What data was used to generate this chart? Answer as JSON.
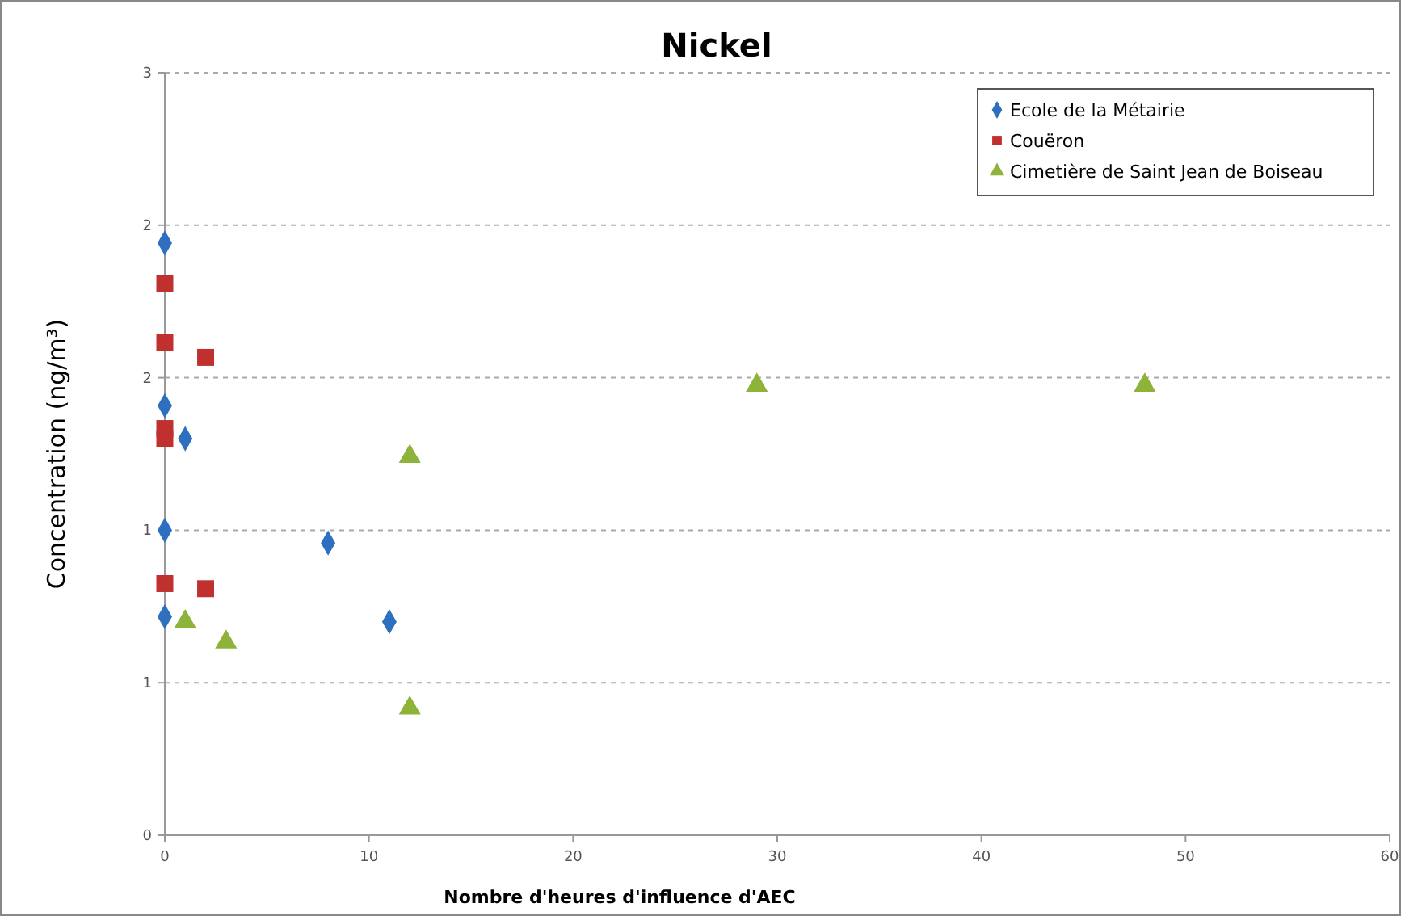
{
  "chart_data": {
    "type": "scatter",
    "title": "Nickel",
    "xlabel": "Nombre d'heures d'influence d'AEC",
    "ylabel": "Concentration  (ng/m³)",
    "xlim": [
      0,
      60
    ],
    "xticks": [
      0,
      10,
      20,
      30,
      40,
      50,
      60
    ],
    "ylim": [
      0,
      3
    ],
    "yticks": [
      0,
      {
        "value": 0.6,
        "label": "1"
      },
      {
        "value": 1.2,
        "label": "1"
      },
      {
        "value": 1.8,
        "label": "2"
      },
      {
        "value": 2.4,
        "label": "2"
      },
      3
    ],
    "grid": "y",
    "legend": "top right",
    "series": [
      {
        "name": "Ecole de la Métairie",
        "color": "#2e6fc0",
        "marker": "diamond",
        "x": [
          0,
          0,
          1,
          0,
          8,
          0,
          11
        ],
        "values": [
          2.33,
          1.69,
          1.56,
          1.2,
          1.15,
          0.86,
          0.84
        ]
      },
      {
        "name": "Couëron",
        "color": "#c0302e",
        "marker": "square",
        "x": [
          0,
          0,
          2,
          0,
          0,
          0,
          2
        ],
        "values": [
          2.17,
          1.94,
          1.88,
          1.6,
          1.56,
          0.99,
          0.97
        ]
      },
      {
        "name": "Cimetière de Saint Jean de Boiseau",
        "color": "#8db33a",
        "marker": "triangle",
        "x": [
          1,
          3,
          12,
          12,
          29,
          48
        ],
        "values": [
          0.84,
          0.76,
          1.49,
          0.5,
          1.77,
          1.77
        ]
      }
    ]
  }
}
